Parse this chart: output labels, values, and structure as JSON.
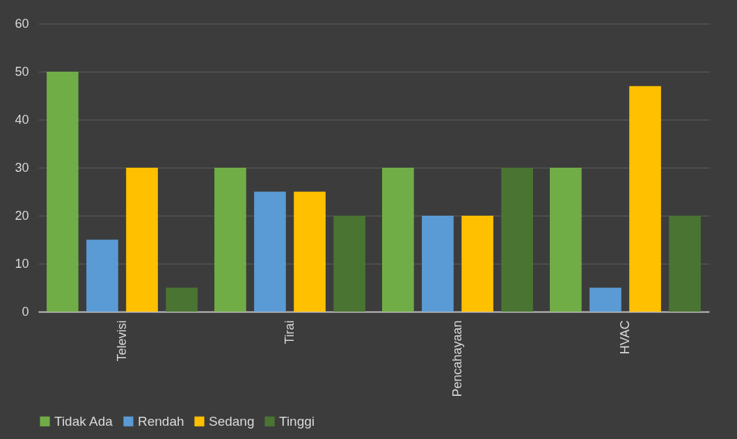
{
  "chart_data": {
    "type": "bar",
    "categories": [
      "Televisi",
      "Tirai",
      "Pencahayaan",
      "HVAC"
    ],
    "series": [
      {
        "name": "Tidak Ada",
        "color": "#70ad47",
        "values": [
          50,
          30,
          30,
          30
        ]
      },
      {
        "name": "Rendah",
        "color": "#5b9bd5",
        "values": [
          15,
          25,
          20,
          5
        ]
      },
      {
        "name": "Sedang",
        "color": "#ffc000",
        "values": [
          30,
          25,
          20,
          47
        ]
      },
      {
        "name": "Tinggi",
        "color": "#4a7432",
        "values": [
          5,
          20,
          30,
          20
        ]
      }
    ],
    "ylim": [
      0,
      60
    ],
    "yticks": [
      0,
      10,
      20,
      30,
      40,
      50,
      60
    ],
    "grid": "y",
    "legend": "bottom"
  }
}
